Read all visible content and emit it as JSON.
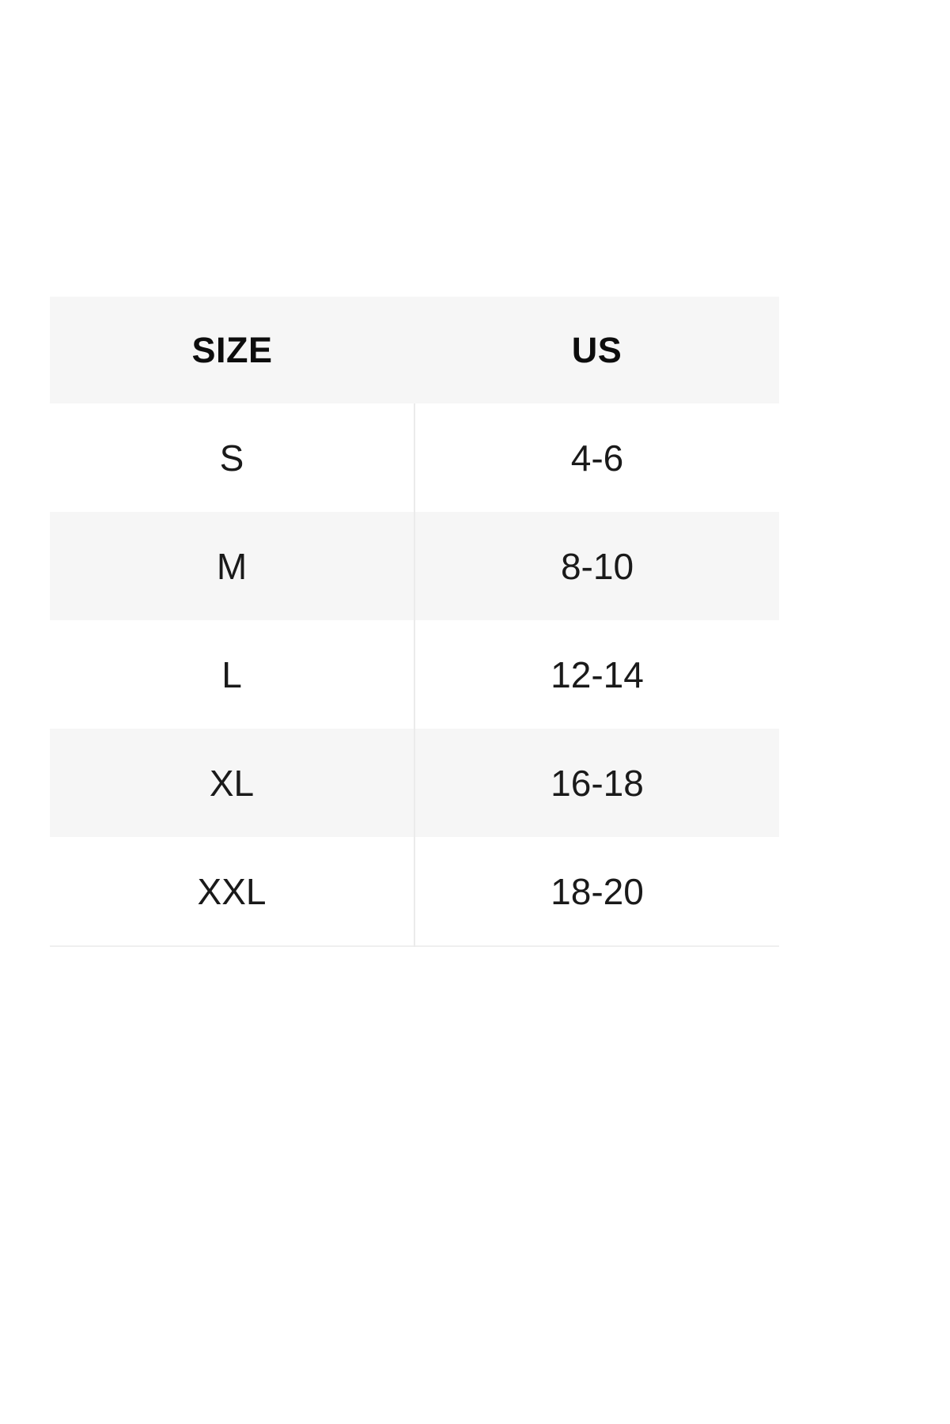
{
  "size_chart": {
    "columns": {
      "size_label": "SIZE",
      "us_label": "US"
    },
    "rows": [
      {
        "size": "S",
        "us": "4-6"
      },
      {
        "size": "M",
        "us": "8-10"
      },
      {
        "size": "L",
        "us": "12-14"
      },
      {
        "size": "XL",
        "us": "16-18"
      },
      {
        "size": "XXL",
        "us": "18-20"
      }
    ],
    "colors": {
      "header_bg": "#f6f6f6",
      "row_bg": "#ffffff",
      "row_alt_bg": "#f6f6f6",
      "divider": "#ebebeb",
      "header_text": "#0d0d0d",
      "body_text": "#1a1a1a"
    }
  }
}
